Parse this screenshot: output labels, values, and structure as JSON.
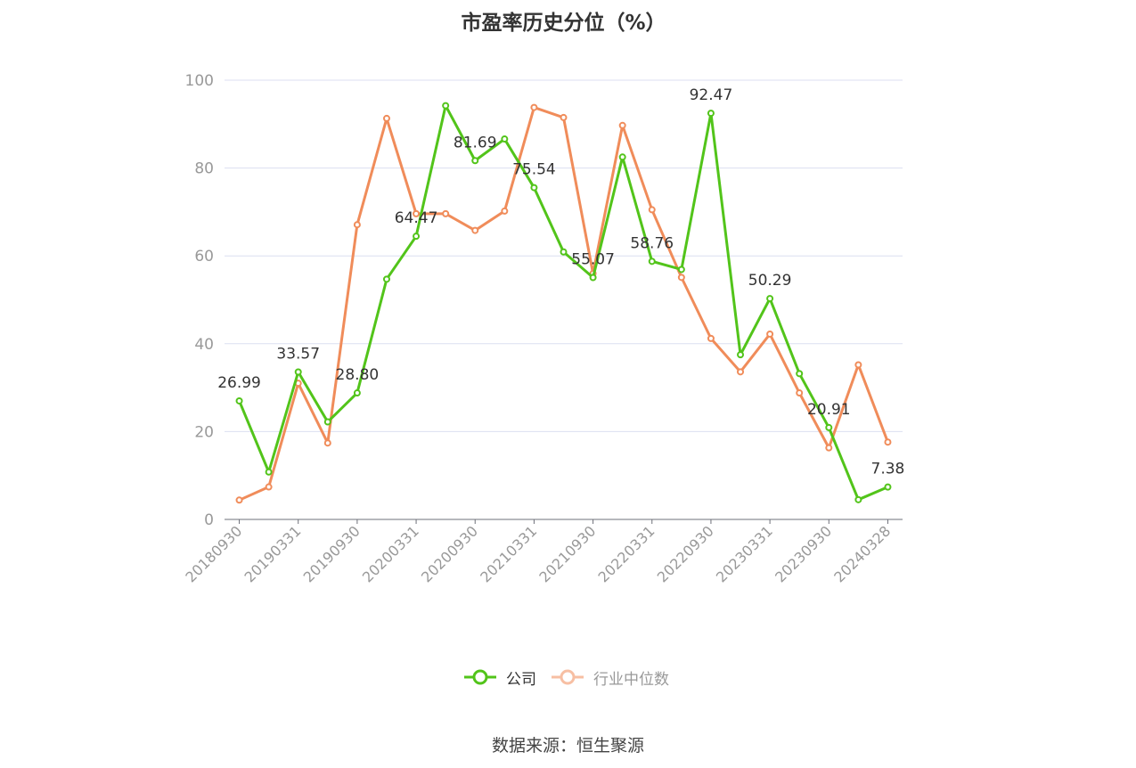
{
  "title": "市盈率历史分位（%）",
  "source": "数据来源：恒生聚源",
  "colors": {
    "company": "#52c41a",
    "industry": "#f08c5a",
    "grid": "#dcdff0",
    "axis": "#6e7079",
    "label": "#333333"
  },
  "legend": {
    "company": "公司",
    "industry": "行业中位数"
  },
  "chart_data": {
    "type": "line",
    "title": "市盈率历史分位（%）",
    "ylim": [
      0,
      100
    ],
    "yticks": [
      0,
      20,
      40,
      60,
      80,
      100
    ],
    "grid": true,
    "legend_position": "bottom",
    "x": [
      "20180930",
      "20181231",
      "20190331",
      "20190630",
      "20190930",
      "20191231",
      "20200331",
      "20200630",
      "20200930",
      "20201231",
      "20210331",
      "20210630",
      "20210930",
      "20211231",
      "20220331",
      "20220630",
      "20220930",
      "20221231",
      "20230331",
      "20230630",
      "20230930",
      "20231231",
      "20240328"
    ],
    "x_tick_labels": [
      "20180930",
      "20190331",
      "20190930",
      "20200331",
      "20200930",
      "20210331",
      "20210930",
      "20220331",
      "20220930",
      "20230331",
      "20230930",
      "20240328"
    ],
    "series": [
      {
        "name": "公司",
        "values": [
          26.99,
          10.8,
          33.57,
          22.2,
          28.8,
          54.7,
          64.47,
          94.2,
          81.69,
          86.6,
          75.54,
          60.9,
          55.07,
          82.5,
          58.76,
          56.9,
          92.47,
          37.5,
          50.29,
          33.2,
          20.91,
          4.5,
          7.38
        ],
        "data_labels": {
          "0": "26.99",
          "2": "33.57",
          "4": "28.80",
          "6": "64.47",
          "8": "81.69",
          "10": "75.54",
          "12": "55.07",
          "14": "58.76",
          "16": "92.47",
          "18": "50.29",
          "20": "20.91",
          "22": "7.38"
        }
      },
      {
        "name": "行业中位数",
        "values": [
          4.4,
          7.4,
          31.0,
          17.4,
          67.1,
          91.3,
          69.6,
          69.6,
          65.8,
          70.2,
          93.8,
          91.5,
          56.0,
          89.7,
          70.5,
          55.1,
          41.2,
          33.6,
          42.2,
          28.8,
          16.3,
          35.2,
          17.6
        ]
      }
    ]
  }
}
